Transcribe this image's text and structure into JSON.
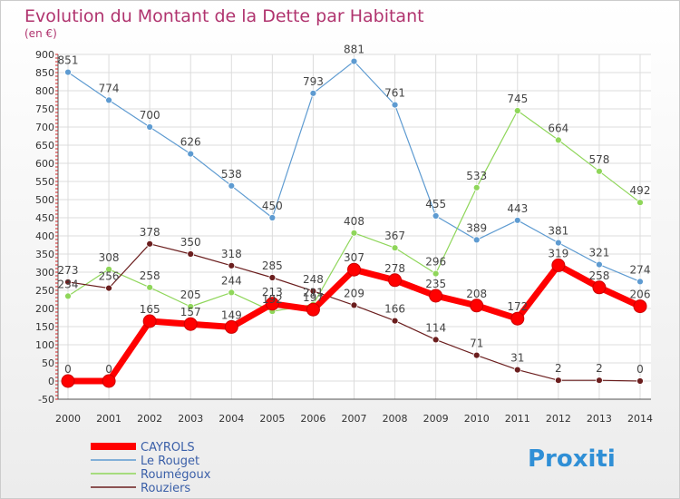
{
  "chart_data": {
    "type": "line",
    "title": "Evolution du Montant de la Dette par Habitant",
    "subtitle": "(en €)",
    "x": [
      "2000",
      "2001",
      "2002",
      "2003",
      "2004",
      "2005",
      "2006",
      "2007",
      "2008",
      "2009",
      "2010",
      "2011",
      "2012",
      "2013",
      "2014"
    ],
    "yticks": [
      "-50",
      "0",
      "50",
      "100",
      "150",
      "200",
      "250",
      "300",
      "350",
      "400",
      "450",
      "500",
      "550",
      "600",
      "650",
      "700",
      "750",
      "800",
      "850",
      "900"
    ],
    "ylim": [
      -50,
      900
    ],
    "grid": true,
    "legend_position": "bottom-left",
    "series": [
      {
        "name": "CAYROLS",
        "color": "#ff0000",
        "values": [
          0,
          0,
          165,
          157,
          149,
          213,
          197,
          307,
          278,
          235,
          208,
          172,
          319,
          258,
          206
        ]
      },
      {
        "name": "Le Rouget",
        "color": "#5e9bd1",
        "values": [
          851,
          774,
          700,
          626,
          538,
          450,
          793,
          881,
          761,
          455,
          389,
          443,
          381,
          321,
          274
        ]
      },
      {
        "name": "Roumégoux",
        "color": "#8fd65a",
        "values": [
          234,
          308,
          258,
          205,
          244,
          192,
          211,
          408,
          367,
          296,
          533,
          745,
          664,
          578,
          492
        ]
      },
      {
        "name": "Rouziers",
        "color": "#6b1e1e",
        "values": [
          273,
          256,
          378,
          350,
          318,
          285,
          248,
          209,
          166,
          114,
          71,
          31,
          2,
          2,
          0
        ]
      }
    ],
    "data_labels": [
      [
        "0",
        "0",
        "165",
        "157",
        "149",
        "213",
        "197",
        "307",
        "278",
        "235",
        "208",
        "172",
        "319",
        "258",
        "206"
      ],
      [
        "851",
        "774",
        "700",
        "626",
        "538",
        "450",
        "793",
        "881",
        "761",
        "455",
        "389",
        "443",
        "381",
        "321",
        "274"
      ],
      [
        "234",
        "308",
        "258",
        "205",
        "244",
        "192",
        "211",
        "408",
        "367",
        "296",
        "533",
        "745",
        "664",
        "578",
        "492"
      ],
      [
        "273",
        "256",
        "378",
        "350",
        "318",
        "285",
        "248",
        "209",
        "166",
        "114",
        "71",
        "31",
        "2",
        "2",
        "0"
      ]
    ]
  },
  "logo": {
    "text": "Proxiti"
  }
}
